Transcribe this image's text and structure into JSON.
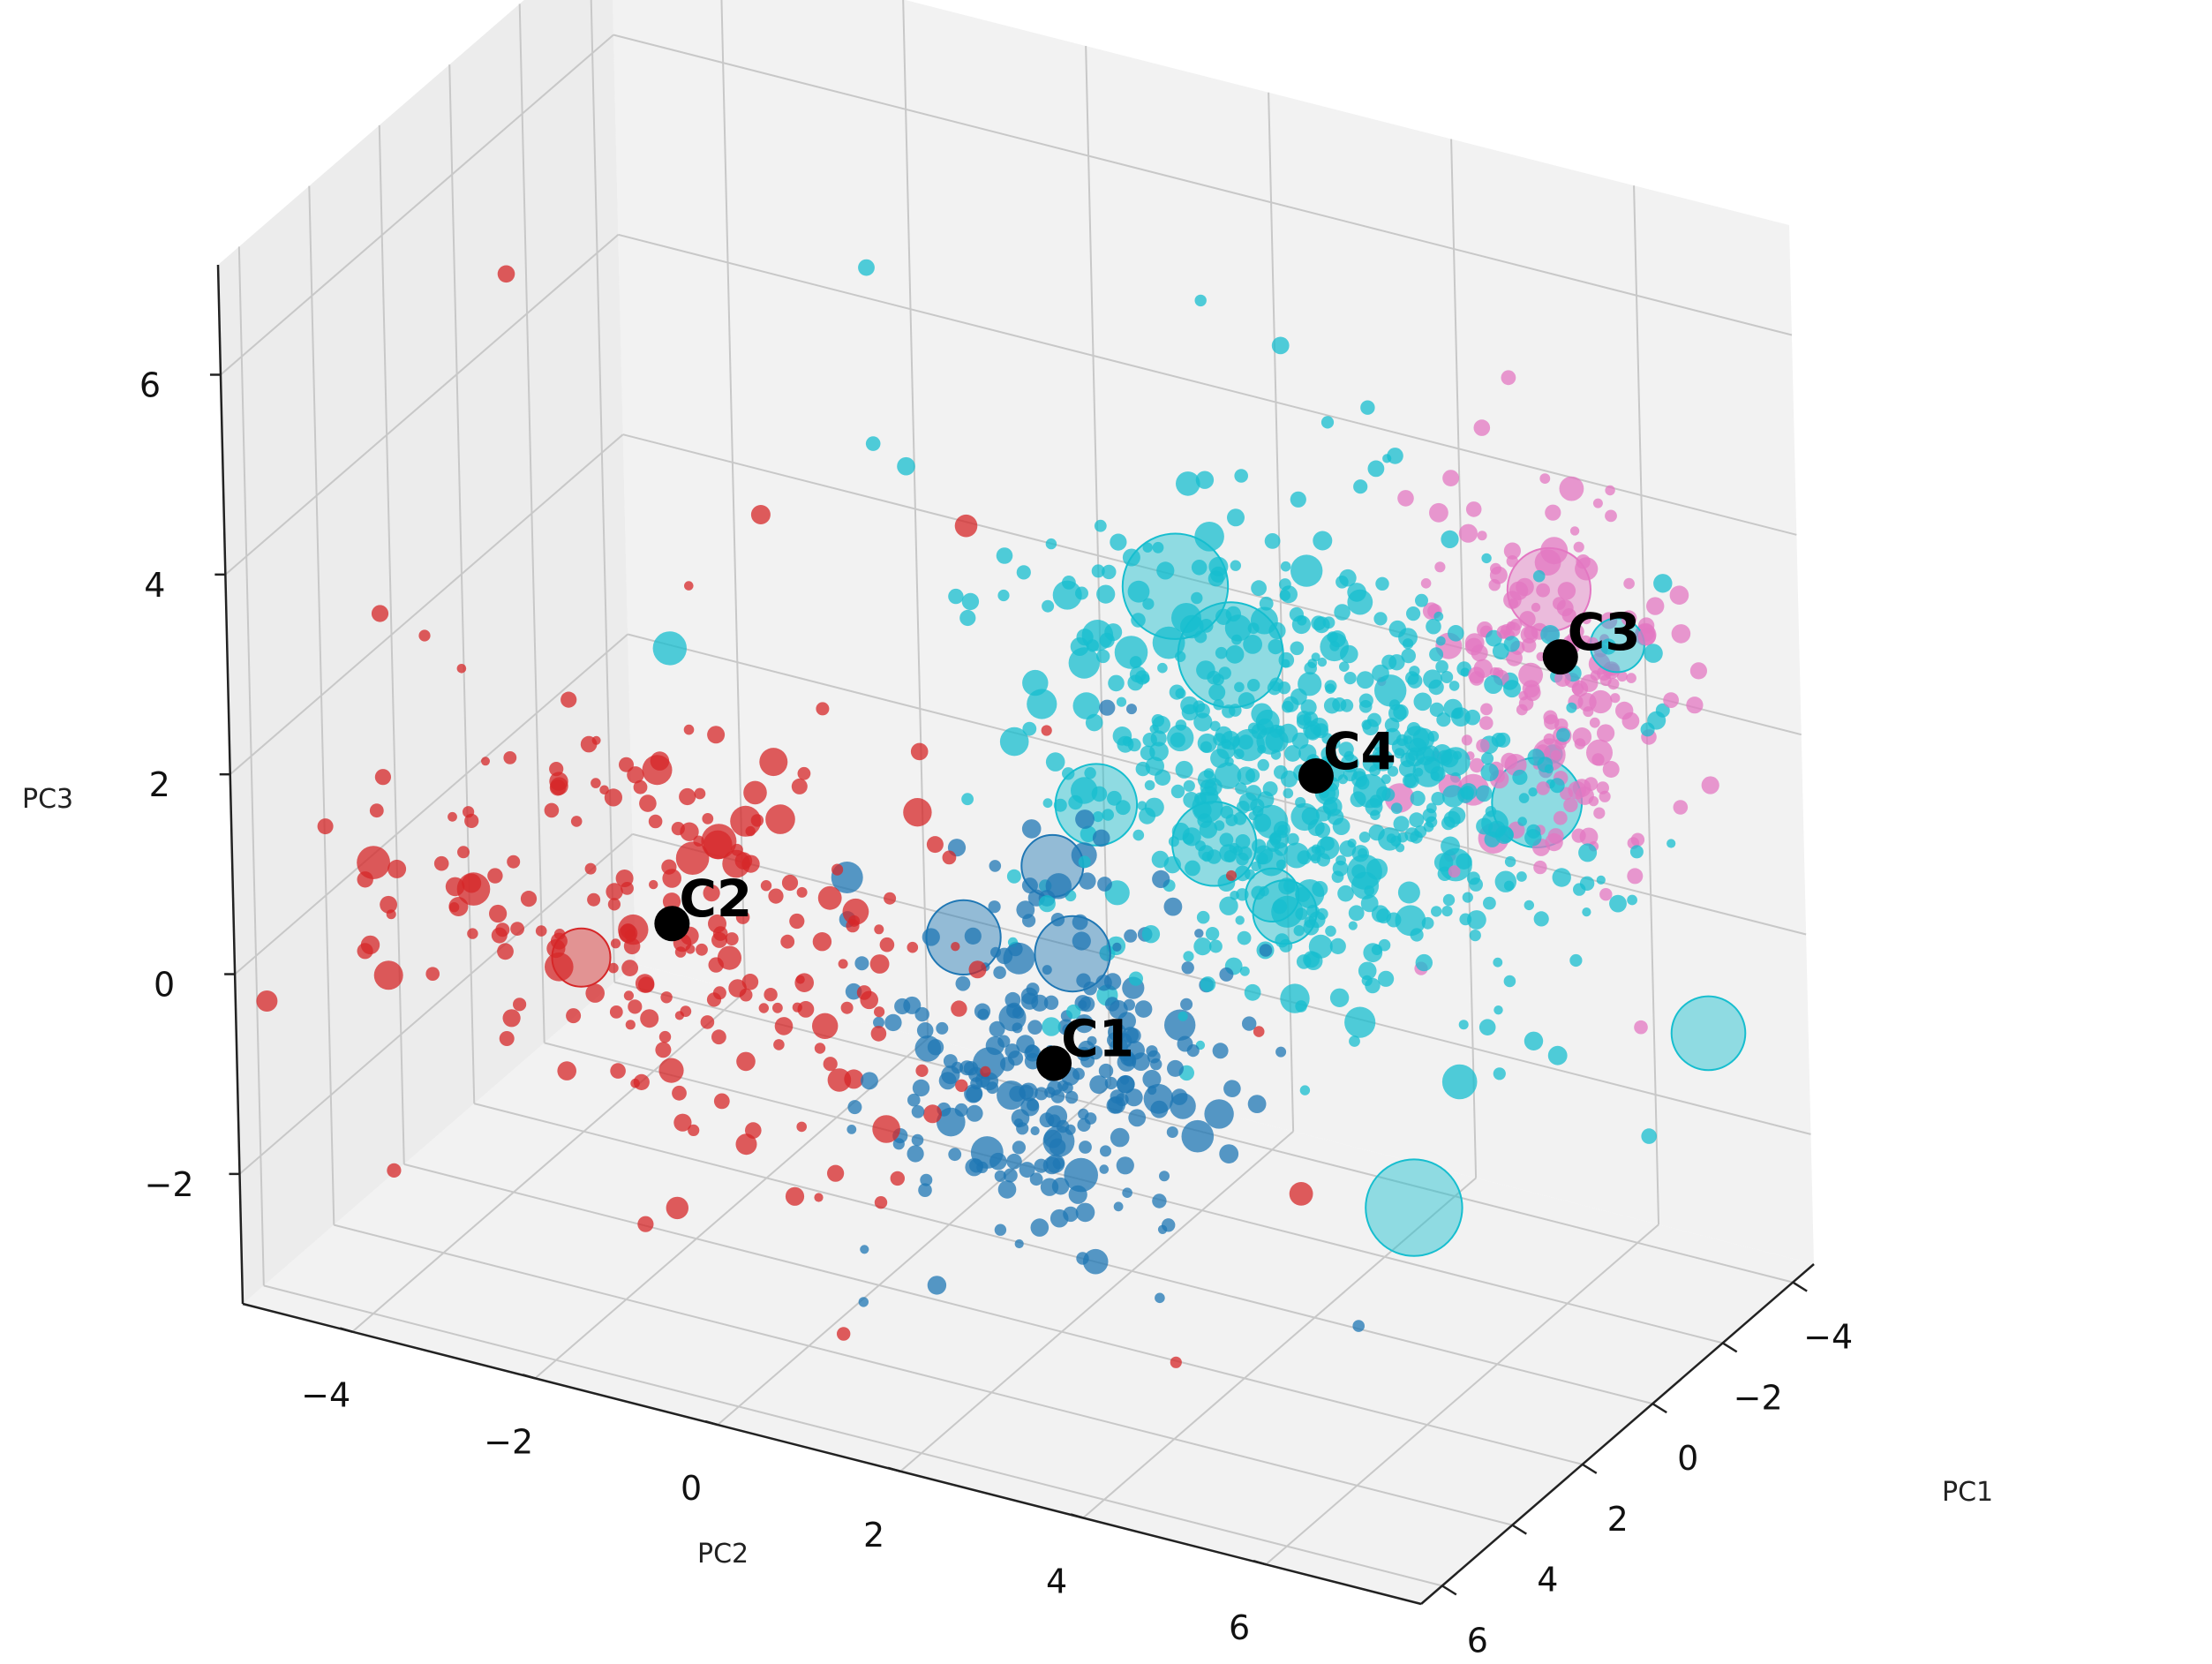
{
  "chart_data": {
    "type": "scatter",
    "projection": "3d",
    "title": "",
    "xlabel": "PC1",
    "ylabel": "PC2",
    "zlabel": "PC3",
    "xticks": [
      "−4",
      "−2",
      "0",
      "2",
      "4",
      "6"
    ],
    "yticks": [
      "−4",
      "−2",
      "0",
      "2",
      "4",
      "6"
    ],
    "zticks": [
      "6",
      "4",
      "2",
      "0",
      "−2"
    ],
    "xlim": [
      -4.6,
      6.6
    ],
    "ylim": [
      -5.2,
      7.7
    ],
    "zlim": [
      -3.3,
      7.1
    ],
    "grid": true,
    "legend": "none",
    "colors": {
      "C1": "#1f77b4",
      "C2": "#d62728",
      "C3": "#e377c2",
      "C4": "#17becf",
      "centroid": "#000000",
      "pane": "#f2f2f2",
      "grid": "#c8c8c8"
    },
    "clusters": [
      {
        "label": "C1",
        "color": "#1f77b4",
        "centroid": [
          2.8,
          2.3,
          -0.3
        ],
        "approx_points": 260
      },
      {
        "label": "C2",
        "color": "#d62728",
        "centroid": [
          4.5,
          -1.2,
          0.8
        ],
        "approx_points": 230
      },
      {
        "label": "C3",
        "color": "#e377c2",
        "centroid": [
          -3.5,
          5.5,
          2.6
        ],
        "approx_points": 220
      },
      {
        "label": "C4",
        "color": "#17becf",
        "centroid": [
          -0.4,
          4.0,
          2.0
        ],
        "approx_points": 650
      }
    ]
  }
}
